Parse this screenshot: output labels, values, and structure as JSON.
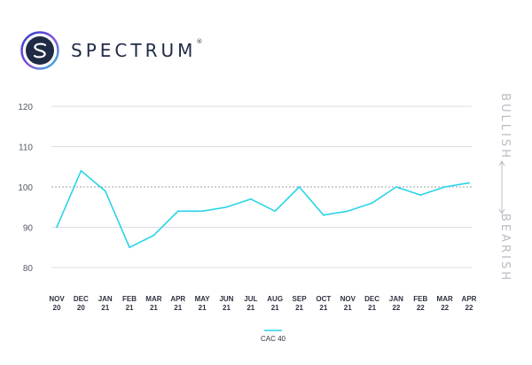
{
  "brand": {
    "name": "SPECTRUM",
    "mark": "®",
    "colors": [
      "#3b4fd8",
      "#8a4fd8",
      "#29c4e0"
    ]
  },
  "chart_data": {
    "type": "line",
    "x": [
      "NOV 20",
      "DEC 20",
      "JAN 21",
      "FEB 21",
      "MAR 21",
      "APR 21",
      "MAY 21",
      "JUN 21",
      "JUL 21",
      "AUG 21",
      "SEP 21",
      "OCT 21",
      "NOV 21",
      "DEC 21",
      "JAN 22",
      "FEB 22",
      "MAR 22",
      "APR 22"
    ],
    "series": [
      {
        "name": "CAC 40",
        "color": "#29d4e8",
        "values": [
          90,
          104,
          99,
          85,
          88,
          94,
          94,
          95,
          97,
          94,
          100,
          93,
          94,
          96,
          100,
          98,
          100,
          101
        ]
      }
    ],
    "ylim": [
      80,
      120
    ],
    "yticks": [
      80,
      90,
      100,
      110,
      120
    ],
    "reference_line": 100,
    "grid": true,
    "legend_position": "bottom-center",
    "side_labels": {
      "top": "BULLISH",
      "bottom": "BEARISH"
    }
  }
}
